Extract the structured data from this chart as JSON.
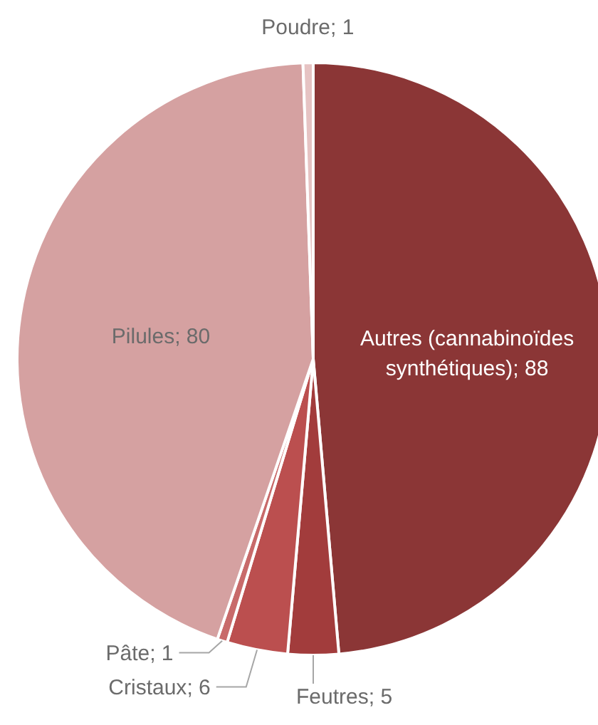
{
  "chart_data": {
    "type": "pie",
    "categories": [
      "Autres (cannabinoïdes synthétiques)",
      "Feutres",
      "Cristaux",
      "Pâte",
      "Pilules",
      "Poudre"
    ],
    "values": [
      88,
      5,
      6,
      1,
      80,
      1
    ],
    "colors": [
      "#8b3636",
      "#a23c3c",
      "#bb4f4f",
      "#c86a6a",
      "#d5a1a1",
      "#e6c3c3"
    ],
    "value_labels": [
      "; 88",
      "; 5",
      "; 6",
      "; 1",
      "; 80",
      "; 1"
    ]
  }
}
